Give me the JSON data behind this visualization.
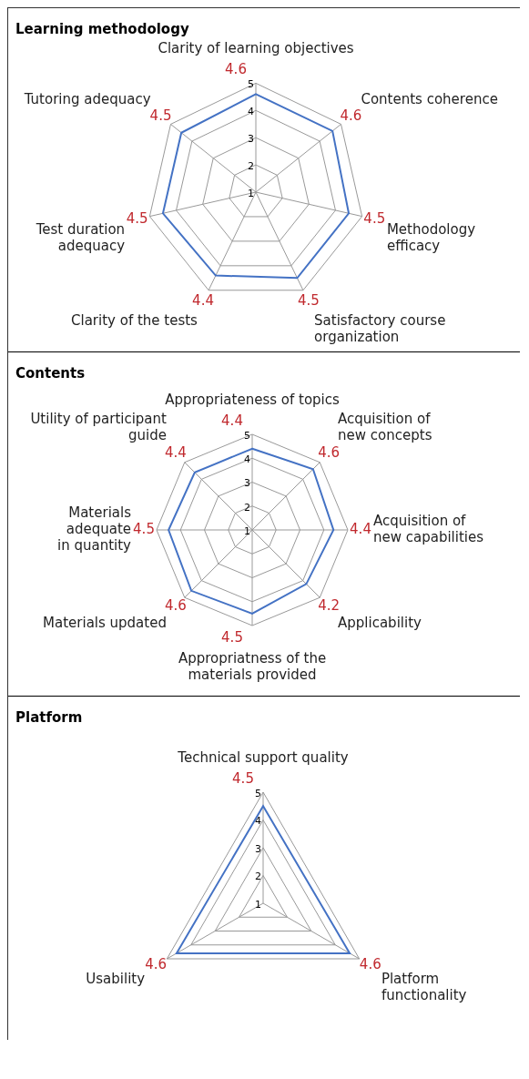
{
  "chart_data": [
    {
      "type": "radar",
      "title": "Learning methodology",
      "categories": [
        "Clarity of learning objectives",
        "Contents coherence",
        "Methodology\nefficacy",
        "Satisfactory course\norganization",
        "Clarity of the tests",
        "Test duration\nadequacy",
        "Tutoring adequacy"
      ],
      "values": [
        4.6,
        4.6,
        4.5,
        4.5,
        4.4,
        4.5,
        4.5
      ],
      "color": "#4472c4",
      "ylim": [
        1,
        5
      ],
      "yticks": [
        1,
        2,
        3,
        4,
        5
      ],
      "grid": true,
      "marker": "none",
      "data_labels": true
    },
    {
      "type": "radar",
      "title": "Contents",
      "categories": [
        "Appropriateness of topics",
        "Acquisition of\nnew concepts",
        "Acquisition of\nnew capabilities",
        "Applicability",
        "Appropriatness of the\nmaterials provided",
        "Materials updated",
        "Materials\nadequate\nin quantity",
        "Utility of participant\nguide"
      ],
      "values": [
        4.4,
        4.6,
        4.4,
        4.2,
        4.5,
        4.6,
        4.5,
        4.4
      ],
      "color": "#4472c4",
      "ylim": [
        1,
        5
      ],
      "yticks": [
        1,
        2,
        3,
        4,
        5
      ],
      "grid": true,
      "marker": "none",
      "data_labels": true
    },
    {
      "type": "radar",
      "title": "Platform",
      "categories": [
        "Technical support quality",
        "Platform\nfunctionality",
        "Usability"
      ],
      "values": [
        4.5,
        4.6,
        4.6
      ],
      "color": "#4472c4",
      "ylim": [
        1,
        5
      ],
      "yticks": [
        1,
        2,
        3,
        4,
        5
      ],
      "grid": true,
      "marker": "none",
      "data_labels": true
    }
  ]
}
